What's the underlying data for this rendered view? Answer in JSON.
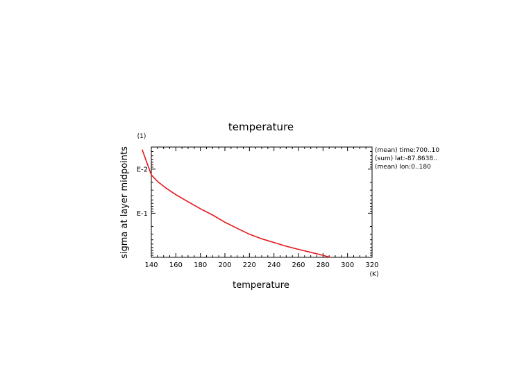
{
  "chart_data": {
    "type": "line",
    "title": "temperature",
    "xlabel": "temperature",
    "x_unit": "(K)",
    "ylabel": "sigma at layer midpoints",
    "y_unit": "(1)",
    "xlim": [
      140,
      320
    ],
    "x_ticks": [
      140,
      160,
      180,
      200,
      220,
      240,
      260,
      280,
      300,
      320
    ],
    "y_scale": "log",
    "ylim": [
      0.00316,
      1.0
    ],
    "y_ticks": [
      {
        "value": 0.01,
        "label": "E-2"
      },
      {
        "value": 0.1,
        "label": "E-1"
      }
    ],
    "annotations": [
      "(mean) time:700..10 ",
      "(sum) lat:-87.8638..",
      "(mean) lon:0..180"
    ],
    "series": [
      {
        "color": "#e8141b",
        "x": [
          132.5,
          140.0,
          145.0,
          152.0,
          160.0,
          170.0,
          180.0,
          190.0,
          200.0,
          210.0,
          220.0,
          230.0,
          240.0,
          250.0,
          260.0,
          270.0,
          280.0,
          286.0
        ],
        "y": [
          0.0036,
          0.0135,
          0.019,
          0.027,
          0.038,
          0.055,
          0.079,
          0.11,
          0.16,
          0.22,
          0.3,
          0.38,
          0.46,
          0.56,
          0.66,
          0.77,
          0.9,
          1.0
        ]
      }
    ]
  }
}
